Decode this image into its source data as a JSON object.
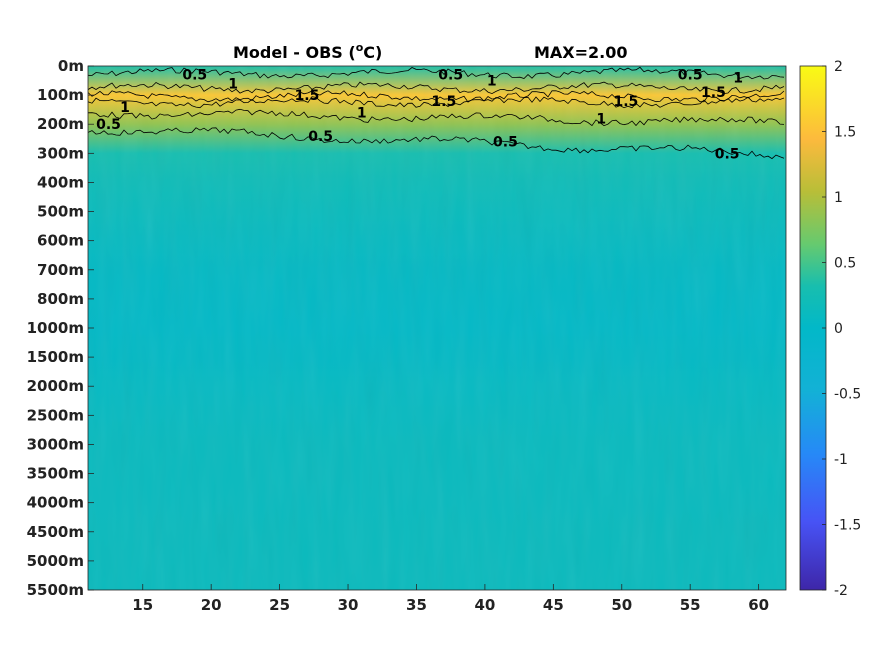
{
  "chart_data": {
    "type": "heatmap",
    "title": "Model - OBS (",
    "title_unit_sup": "o",
    "title_unit_tail": "C)",
    "max_label": "MAX=2.00",
    "x_ticks": [
      15,
      20,
      25,
      30,
      35,
      40,
      45,
      50,
      55,
      60
    ],
    "x_range": [
      11,
      62
    ],
    "y_levels": [
      "0m",
      "100m",
      "200m",
      "300m",
      "400m",
      "500m",
      "600m",
      "700m",
      "800m",
      "1000m",
      "1500m",
      "2000m",
      "2500m",
      "3000m",
      "3500m",
      "4000m",
      "4500m",
      "5000m",
      "5500m"
    ],
    "colorbar": {
      "range": [
        -2,
        2
      ],
      "ticks": [
        "2",
        "1.5",
        "1",
        "0.5",
        "0",
        "-0.5",
        "-1",
        "-1.5",
        "-2"
      ],
      "colormap": "parula"
    },
    "depth_profile": [
      {
        "depth": "0m",
        "value": 0.35
      },
      {
        "depth": "100m",
        "value": 1.55
      },
      {
        "depth": "200m",
        "value": 0.85
      },
      {
        "depth": "300m",
        "value": 0.3
      },
      {
        "depth": "400m",
        "value": 0.2
      },
      {
        "depth": "500m",
        "value": 0.15
      },
      {
        "depth": "600m",
        "value": 0.1
      },
      {
        "depth": "700m",
        "value": 0.06
      },
      {
        "depth": "800m",
        "value": 0.04
      },
      {
        "depth": "1000m",
        "value": 0.03
      },
      {
        "depth": "1500m",
        "value": 0.05
      },
      {
        "depth": "2000m",
        "value": 0.08
      },
      {
        "depth": "2500m",
        "value": 0.1
      },
      {
        "depth": "3000m",
        "value": 0.12
      },
      {
        "depth": "3500m",
        "value": 0.12
      },
      {
        "depth": "4000m",
        "value": 0.12
      },
      {
        "depth": "4500m",
        "value": 0.13
      },
      {
        "depth": "5000m",
        "value": 0.13
      },
      {
        "depth": "5500m",
        "value": 0.13
      }
    ],
    "contours": [
      {
        "level": 0.5,
        "labels": [
          {
            "text": "0.5",
            "x": 18.8,
            "depth_index": 0.3
          },
          {
            "text": "0.5",
            "x": 12.5,
            "depth_index": 2.0
          },
          {
            "text": "0.5",
            "x": 28.0,
            "depth_index": 2.4
          },
          {
            "text": "0.5",
            "x": 37.5,
            "depth_index": 0.3
          },
          {
            "text": "0.5",
            "x": 41.5,
            "depth_index": 2.6
          },
          {
            "text": "0.5",
            "x": 55.0,
            "depth_index": 0.3
          },
          {
            "text": "0.5",
            "x": 57.7,
            "depth_index": 3.0
          }
        ]
      },
      {
        "level": 1,
        "labels": [
          {
            "text": "1",
            "x": 13.7,
            "depth_index": 1.4
          },
          {
            "text": "1",
            "x": 21.6,
            "depth_index": 0.6
          },
          {
            "text": "1",
            "x": 31.0,
            "depth_index": 1.6
          },
          {
            "text": "1",
            "x": 40.5,
            "depth_index": 0.5
          },
          {
            "text": "1",
            "x": 48.5,
            "depth_index": 1.8
          },
          {
            "text": "1",
            "x": 58.5,
            "depth_index": 0.4
          }
        ]
      },
      {
        "level": 1.5,
        "labels": [
          {
            "text": "1.5",
            "x": 27.0,
            "depth_index": 1.0
          },
          {
            "text": "1.5",
            "x": 37.0,
            "depth_index": 1.2
          },
          {
            "text": "1.5",
            "x": 50.3,
            "depth_index": 1.2
          },
          {
            "text": "1.5",
            "x": 56.7,
            "depth_index": 0.9
          }
        ]
      }
    ]
  }
}
